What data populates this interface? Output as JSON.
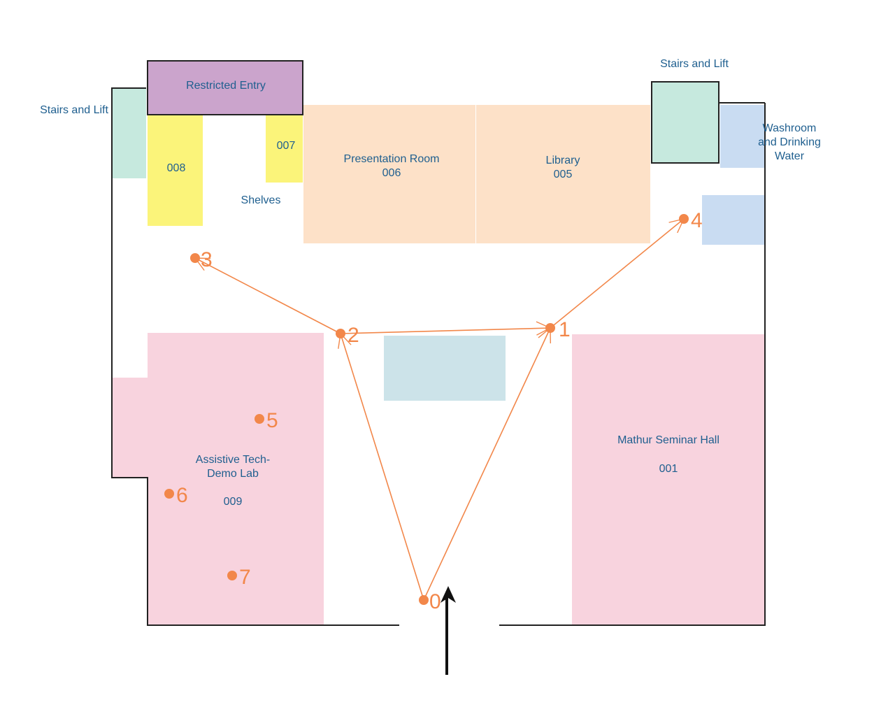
{
  "colors": {
    "restricted": "#cba4cc",
    "shelf": "#fbf47a",
    "room_peach": "#fde1c8",
    "stairs_green": "#c6e9de",
    "washroom_blue": "#c9dcf2",
    "pink_room": "#f8d3de",
    "center_block": "#cce3e9",
    "route": "#f2874a",
    "label_text": "#1f5f8f",
    "wall": "#222222",
    "entrance_arrow": "#111111"
  },
  "labels": {
    "restricted": "Restricted Entry",
    "stairs_left": "Stairs and Lift",
    "stairs_right": "Stairs and Lift",
    "washroom_1": "Washroom",
    "washroom_2": "and Drinking",
    "washroom_3": "Water",
    "room_008": "008",
    "room_007": "007",
    "shelves": "Shelves",
    "presentation_name": "Presentation Room",
    "presentation_num": "006",
    "library_name": "Library",
    "library_num": "005",
    "mathur_name": "Mathur Seminar Hall",
    "mathur_num": "001",
    "assistive_1": "Assistive Tech-",
    "assistive_2": "Demo Lab",
    "assistive_num": "009"
  },
  "nodes": [
    "0",
    "1",
    "2",
    "3",
    "4",
    "5",
    "6",
    "7"
  ],
  "routes": [
    {
      "from": "0",
      "to": "1"
    },
    {
      "from": "0",
      "to": "2"
    },
    {
      "from": "2",
      "to": "1"
    },
    {
      "from": "2",
      "to": "3"
    },
    {
      "from": "1",
      "to": "4"
    }
  ]
}
